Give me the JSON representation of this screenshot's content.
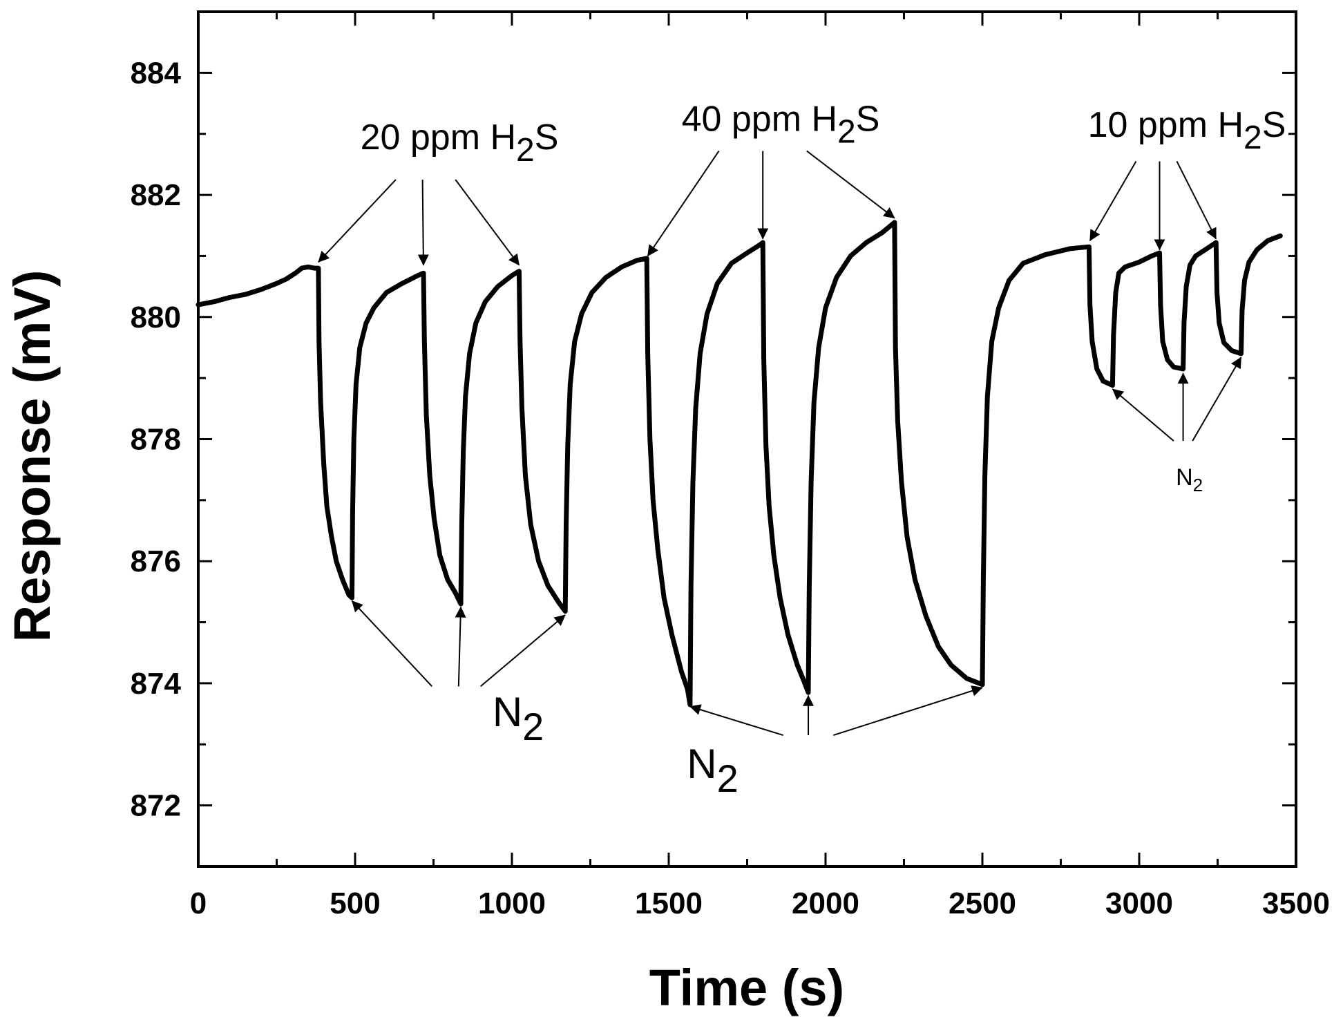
{
  "chart_data": {
    "type": "line",
    "title": "",
    "xlabel": "Time (s)",
    "ylabel": "Response (mV)",
    "xlim": [
      0,
      3500
    ],
    "ylim": [
      871,
      885
    ],
    "xticks": [
      0,
      500,
      1000,
      1500,
      2000,
      2500,
      3000,
      3500
    ],
    "xtick_labels": [
      "0",
      "500",
      "1000",
      "1500",
      "2000",
      "2500",
      "3000",
      "3500"
    ],
    "yticks": [
      872,
      874,
      876,
      878,
      880,
      882,
      884
    ],
    "ytick_labels": [
      "872",
      "874",
      "876",
      "878",
      "880",
      "882",
      "884"
    ],
    "grid": false,
    "line_color": "#000000",
    "series": [
      {
        "name": "Response",
        "points": [
          [
            0,
            880.2
          ],
          [
            50,
            880.25
          ],
          [
            100,
            880.32
          ],
          [
            150,
            880.37
          ],
          [
            200,
            880.45
          ],
          [
            250,
            880.55
          ],
          [
            280,
            880.62
          ],
          [
            310,
            880.72
          ],
          [
            330,
            880.8
          ],
          [
            350,
            880.82
          ],
          [
            370,
            880.8
          ],
          [
            383,
            880.8
          ],
          [
            385,
            879.6
          ],
          [
            390,
            878.6
          ],
          [
            400,
            877.6
          ],
          [
            410,
            876.9
          ],
          [
            425,
            876.4
          ],
          [
            440,
            876.0
          ],
          [
            460,
            875.7
          ],
          [
            480,
            875.45
          ],
          [
            490,
            875.4
          ],
          [
            492,
            876.8
          ],
          [
            496,
            878.0
          ],
          [
            503,
            878.9
          ],
          [
            515,
            879.5
          ],
          [
            535,
            879.9
          ],
          [
            560,
            880.15
          ],
          [
            600,
            880.4
          ],
          [
            650,
            880.55
          ],
          [
            700,
            880.68
          ],
          [
            718,
            880.72
          ],
          [
            721,
            879.6
          ],
          [
            727,
            878.4
          ],
          [
            738,
            877.4
          ],
          [
            752,
            876.7
          ],
          [
            770,
            876.1
          ],
          [
            795,
            875.7
          ],
          [
            820,
            875.48
          ],
          [
            837,
            875.3
          ],
          [
            840,
            876.6
          ],
          [
            845,
            877.8
          ],
          [
            852,
            878.7
          ],
          [
            865,
            879.4
          ],
          [
            885,
            879.9
          ],
          [
            915,
            880.25
          ],
          [
            955,
            880.5
          ],
          [
            1000,
            880.68
          ],
          [
            1023,
            880.75
          ],
          [
            1026,
            879.6
          ],
          [
            1032,
            878.5
          ],
          [
            1043,
            877.4
          ],
          [
            1060,
            876.6
          ],
          [
            1085,
            876.0
          ],
          [
            1115,
            875.6
          ],
          [
            1150,
            875.32
          ],
          [
            1170,
            875.18
          ],
          [
            1173,
            876.6
          ],
          [
            1178,
            877.9
          ],
          [
            1186,
            878.9
          ],
          [
            1200,
            879.6
          ],
          [
            1222,
            880.05
          ],
          [
            1255,
            880.4
          ],
          [
            1300,
            880.65
          ],
          [
            1350,
            880.82
          ],
          [
            1400,
            880.93
          ],
          [
            1430,
            880.96
          ],
          [
            1433,
            879.4
          ],
          [
            1440,
            878.0
          ],
          [
            1450,
            877.0
          ],
          [
            1465,
            876.2
          ],
          [
            1485,
            875.4
          ],
          [
            1510,
            874.8
          ],
          [
            1540,
            874.2
          ],
          [
            1560,
            873.9
          ],
          [
            1568,
            873.65
          ],
          [
            1571,
            875.6
          ],
          [
            1577,
            877.3
          ],
          [
            1586,
            878.5
          ],
          [
            1600,
            879.4
          ],
          [
            1622,
            880.05
          ],
          [
            1655,
            880.55
          ],
          [
            1700,
            880.88
          ],
          [
            1750,
            881.05
          ],
          [
            1790,
            881.18
          ],
          [
            1800,
            881.22
          ],
          [
            1803,
            879.3
          ],
          [
            1810,
            877.9
          ],
          [
            1820,
            876.9
          ],
          [
            1835,
            876.1
          ],
          [
            1855,
            875.4
          ],
          [
            1880,
            874.8
          ],
          [
            1910,
            874.3
          ],
          [
            1930,
            874.05
          ],
          [
            1945,
            873.85
          ],
          [
            1948,
            875.6
          ],
          [
            1954,
            877.3
          ],
          [
            1963,
            878.6
          ],
          [
            1978,
            879.5
          ],
          [
            2000,
            880.15
          ],
          [
            2035,
            880.65
          ],
          [
            2080,
            881.0
          ],
          [
            2130,
            881.22
          ],
          [
            2180,
            881.38
          ],
          [
            2220,
            881.55
          ],
          [
            2223,
            879.5
          ],
          [
            2230,
            878.3
          ],
          [
            2242,
            877.3
          ],
          [
            2260,
            876.4
          ],
          [
            2285,
            875.7
          ],
          [
            2320,
            875.1
          ],
          [
            2360,
            874.6
          ],
          [
            2400,
            874.3
          ],
          [
            2450,
            874.08
          ],
          [
            2500,
            873.98
          ],
          [
            2503,
            875.7
          ],
          [
            2508,
            877.4
          ],
          [
            2516,
            878.7
          ],
          [
            2530,
            879.6
          ],
          [
            2552,
            880.15
          ],
          [
            2585,
            880.6
          ],
          [
            2630,
            880.88
          ],
          [
            2700,
            881.02
          ],
          [
            2780,
            881.12
          ],
          [
            2840,
            881.15
          ],
          [
            2843,
            880.2
          ],
          [
            2850,
            879.6
          ],
          [
            2865,
            879.15
          ],
          [
            2885,
            878.95
          ],
          [
            2915,
            878.88
          ],
          [
            2918,
            879.7
          ],
          [
            2925,
            880.4
          ],
          [
            2935,
            880.72
          ],
          [
            2955,
            880.82
          ],
          [
            3000,
            880.9
          ],
          [
            3040,
            881.0
          ],
          [
            3065,
            881.05
          ],
          [
            3068,
            880.2
          ],
          [
            3075,
            879.6
          ],
          [
            3090,
            879.3
          ],
          [
            3110,
            879.18
          ],
          [
            3140,
            879.15
          ],
          [
            3143,
            879.9
          ],
          [
            3150,
            880.5
          ],
          [
            3162,
            880.85
          ],
          [
            3180,
            881.0
          ],
          [
            3210,
            881.1
          ],
          [
            3245,
            881.22
          ],
          [
            3248,
            880.4
          ],
          [
            3255,
            879.9
          ],
          [
            3270,
            879.58
          ],
          [
            3295,
            879.45
          ],
          [
            3325,
            879.4
          ],
          [
            3328,
            880.1
          ],
          [
            3336,
            880.6
          ],
          [
            3350,
            880.9
          ],
          [
            3375,
            881.1
          ],
          [
            3410,
            881.25
          ],
          [
            3450,
            881.33
          ]
        ]
      }
    ],
    "annotations": [
      {
        "id": "ann-20ppm",
        "main": "20 ppm H",
        "sub": "2",
        "post": "S",
        "anchor": [
          0,
          882.75
        ],
        "size": 52,
        "sub_size": 48,
        "arrows": [
          {
            "from": [
              630,
              882.25
            ],
            "to": [
              383,
              880.9
            ]
          },
          {
            "from": [
              715,
              882.25
            ],
            "to": [
              718,
              880.85
            ]
          },
          {
            "from": [
              820,
              882.25
            ],
            "to": [
              1023,
              880.85
            ]
          }
        ]
      },
      {
        "id": "ann-40ppm",
        "main": "40 ppm H",
        "sub": "2",
        "post": "S",
        "anchor": [
          0,
          883.05
        ],
        "size": 52,
        "sub_size": 48,
        "arrows": [
          {
            "from": [
              1660,
              882.72
            ],
            "to": [
              1433,
              881.0
            ]
          },
          {
            "from": [
              1800,
              882.72
            ],
            "to": [
              1800,
              881.28
            ]
          },
          {
            "from": [
              1940,
              882.72
            ],
            "to": [
              2220,
              881.62
            ]
          }
        ]
      },
      {
        "id": "ann-10ppm",
        "main": "10 ppm H",
        "sub": "2",
        "post": "S",
        "anchor": [
          0,
          882.95
        ],
        "size": 52,
        "sub_size": 48,
        "arrows": [
          {
            "from": [
              2990,
              882.55
            ],
            "to": [
              2843,
              881.25
            ]
          },
          {
            "from": [
              3065,
              882.55
            ],
            "to": [
              3065,
              881.1
            ]
          },
          {
            "from": [
              3120,
              882.55
            ],
            "to": [
              3245,
              881.28
            ]
          }
        ]
      },
      {
        "id": "ann-n2-a",
        "main": "N",
        "sub": "2",
        "post": "",
        "anchor": [
          0,
          873.3
        ],
        "size": 60,
        "sub_size": 56,
        "arrows": [
          {
            "from": [
              745,
              873.95
            ],
            "to": [
              490,
              875.35
            ]
          },
          {
            "from": [
              830,
              873.95
            ],
            "to": [
              837,
              875.25
            ]
          },
          {
            "from": [
              900,
              873.95
            ],
            "to": [
              1170,
              875.12
            ]
          }
        ]
      },
      {
        "id": "ann-n2-b",
        "main": "N",
        "sub": "2",
        "post": "",
        "anchor": [
          0,
          872.45
        ],
        "size": 60,
        "sub_size": 56,
        "arrows": [
          {
            "from": [
              1865,
              873.15
            ],
            "to": [
              1568,
              873.62
            ]
          },
          {
            "from": [
              1945,
              873.15
            ],
            "to": [
              1945,
              873.8
            ]
          },
          {
            "from": [
              2025,
              873.15
            ],
            "to": [
              2500,
              873.93
            ]
          }
        ]
      },
      {
        "id": "ann-n2-c",
        "main": "N",
        "sub": "2",
        "post": "",
        "anchor": [
          0,
          877.25
        ],
        "size": 34,
        "sub_size": 26,
        "arrows": [
          {
            "from": [
              3110,
              877.97
            ],
            "to": [
              2915,
              878.82
            ]
          },
          {
            "from": [
              3140,
              877.97
            ],
            "to": [
              3140,
              879.08
            ]
          },
          {
            "from": [
              3170,
              877.97
            ],
            "to": [
              3325,
              879.34
            ]
          }
        ]
      }
    ]
  }
}
